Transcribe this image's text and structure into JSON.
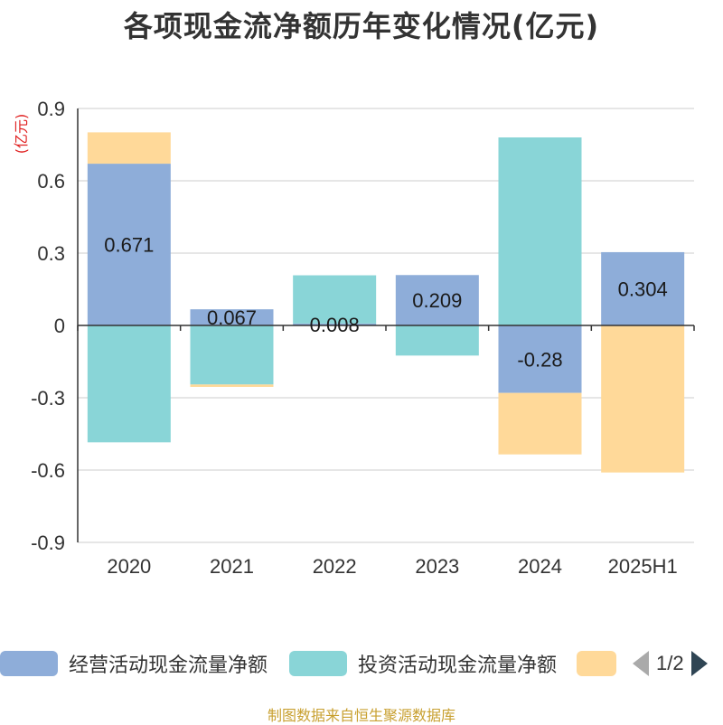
{
  "chart_data": {
    "type": "bar",
    "stacked": true,
    "title": "各项现金流净额历年变化情况(亿元)",
    "ylabel": "(亿元)",
    "categories": [
      "2020",
      "2021",
      "2022",
      "2023",
      "2024",
      "2025H1"
    ],
    "ylim": [
      -0.9,
      0.9
    ],
    "yticks": [
      "0.9",
      "0.6",
      "0.3",
      "0",
      "-0.3",
      "-0.6",
      "-0.9"
    ],
    "grid": true,
    "series": [
      {
        "name": "经营活动现金流量净额",
        "color": "#8eadd9",
        "values": [
          0.671,
          0.067,
          0.008,
          0.209,
          -0.28,
          0.304
        ],
        "labels": [
          "0.671",
          "0.067",
          "0.008",
          "0.209",
          "-0.28",
          "0.304"
        ]
      },
      {
        "name": "投资活动现金流量净额",
        "color": "#89d5d7",
        "values": [
          -0.485,
          -0.245,
          0.2,
          -0.125,
          0.78,
          0.0
        ]
      },
      {
        "name": "",
        "color": "#ffd999",
        "values": [
          0.13,
          -0.01,
          0.0,
          0.0,
          -0.255,
          -0.61
        ]
      }
    ]
  },
  "legend": {
    "items": [
      {
        "label": "经营活动现金流量净额",
        "color": "#8eadd9"
      },
      {
        "label": "投资活动现金流量净额",
        "color": "#89d5d7"
      },
      {
        "label": "",
        "color": "#ffd999"
      }
    ],
    "page": "1/2"
  },
  "source": "制图数据来自恒生聚源数据库"
}
